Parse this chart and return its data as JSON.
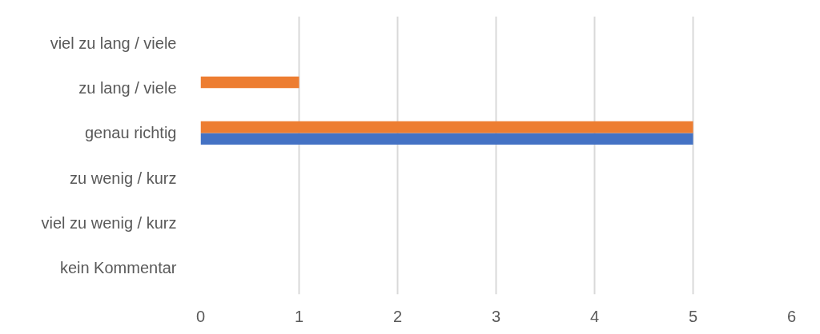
{
  "chart_data": {
    "type": "bar",
    "orientation": "horizontal",
    "categories": [
      "viel zu lang / viele",
      "zu lang / viele",
      "genau richtig",
      "zu wenig / kurz",
      "viel zu wenig / kurz",
      "kein Kommentar"
    ],
    "series": [
      {
        "color": "#4472c4",
        "values": [
          0,
          0,
          5,
          0,
          0,
          0
        ]
      },
      {
        "color": "#ed7d31",
        "values": [
          0,
          1,
          5,
          0,
          0,
          0
        ]
      }
    ],
    "xlim": [
      0,
      6
    ],
    "xticks": [
      0,
      1,
      2,
      3,
      4,
      5,
      6
    ],
    "grid": "x"
  }
}
